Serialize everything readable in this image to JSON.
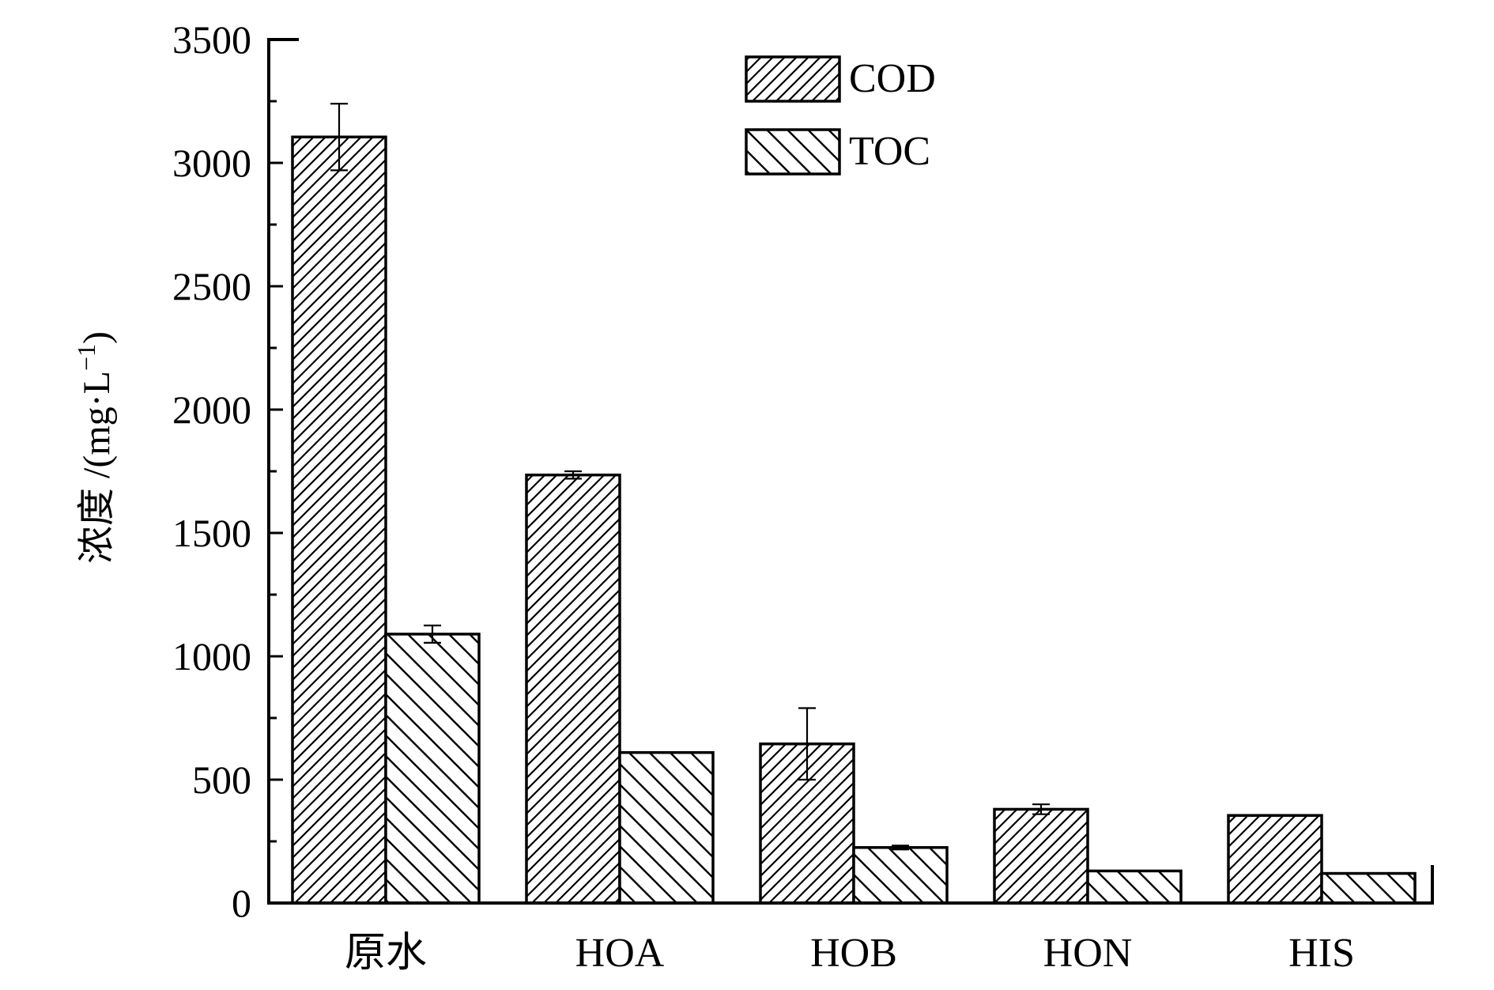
{
  "chart_data": {
    "type": "bar",
    "categories": [
      "原水",
      "HOA",
      "HOB",
      "HON",
      "HIS"
    ],
    "series": [
      {
        "name": "COD",
        "values": [
          3105,
          1735,
          645,
          380,
          355
        ],
        "errors": [
          135,
          15,
          145,
          20,
          0
        ],
        "pattern": "dense-forward-hatch"
      },
      {
        "name": "TOC",
        "values": [
          1090,
          610,
          225,
          130,
          120
        ],
        "errors": [
          35,
          0,
          8,
          0,
          0
        ],
        "pattern": "backward-hatch"
      }
    ],
    "ylabel_main": "浓度 /(mg·L",
    "ylabel_sup": "−1",
    "ylabel_close": ")",
    "ylim": [
      0,
      3500
    ],
    "yticks": [
      0,
      500,
      1000,
      1500,
      2000,
      2500,
      3000,
      3500
    ],
    "grid": false,
    "legend_position": "top-center",
    "colors": {
      "stroke": "#000000",
      "background": "#ffffff"
    }
  }
}
